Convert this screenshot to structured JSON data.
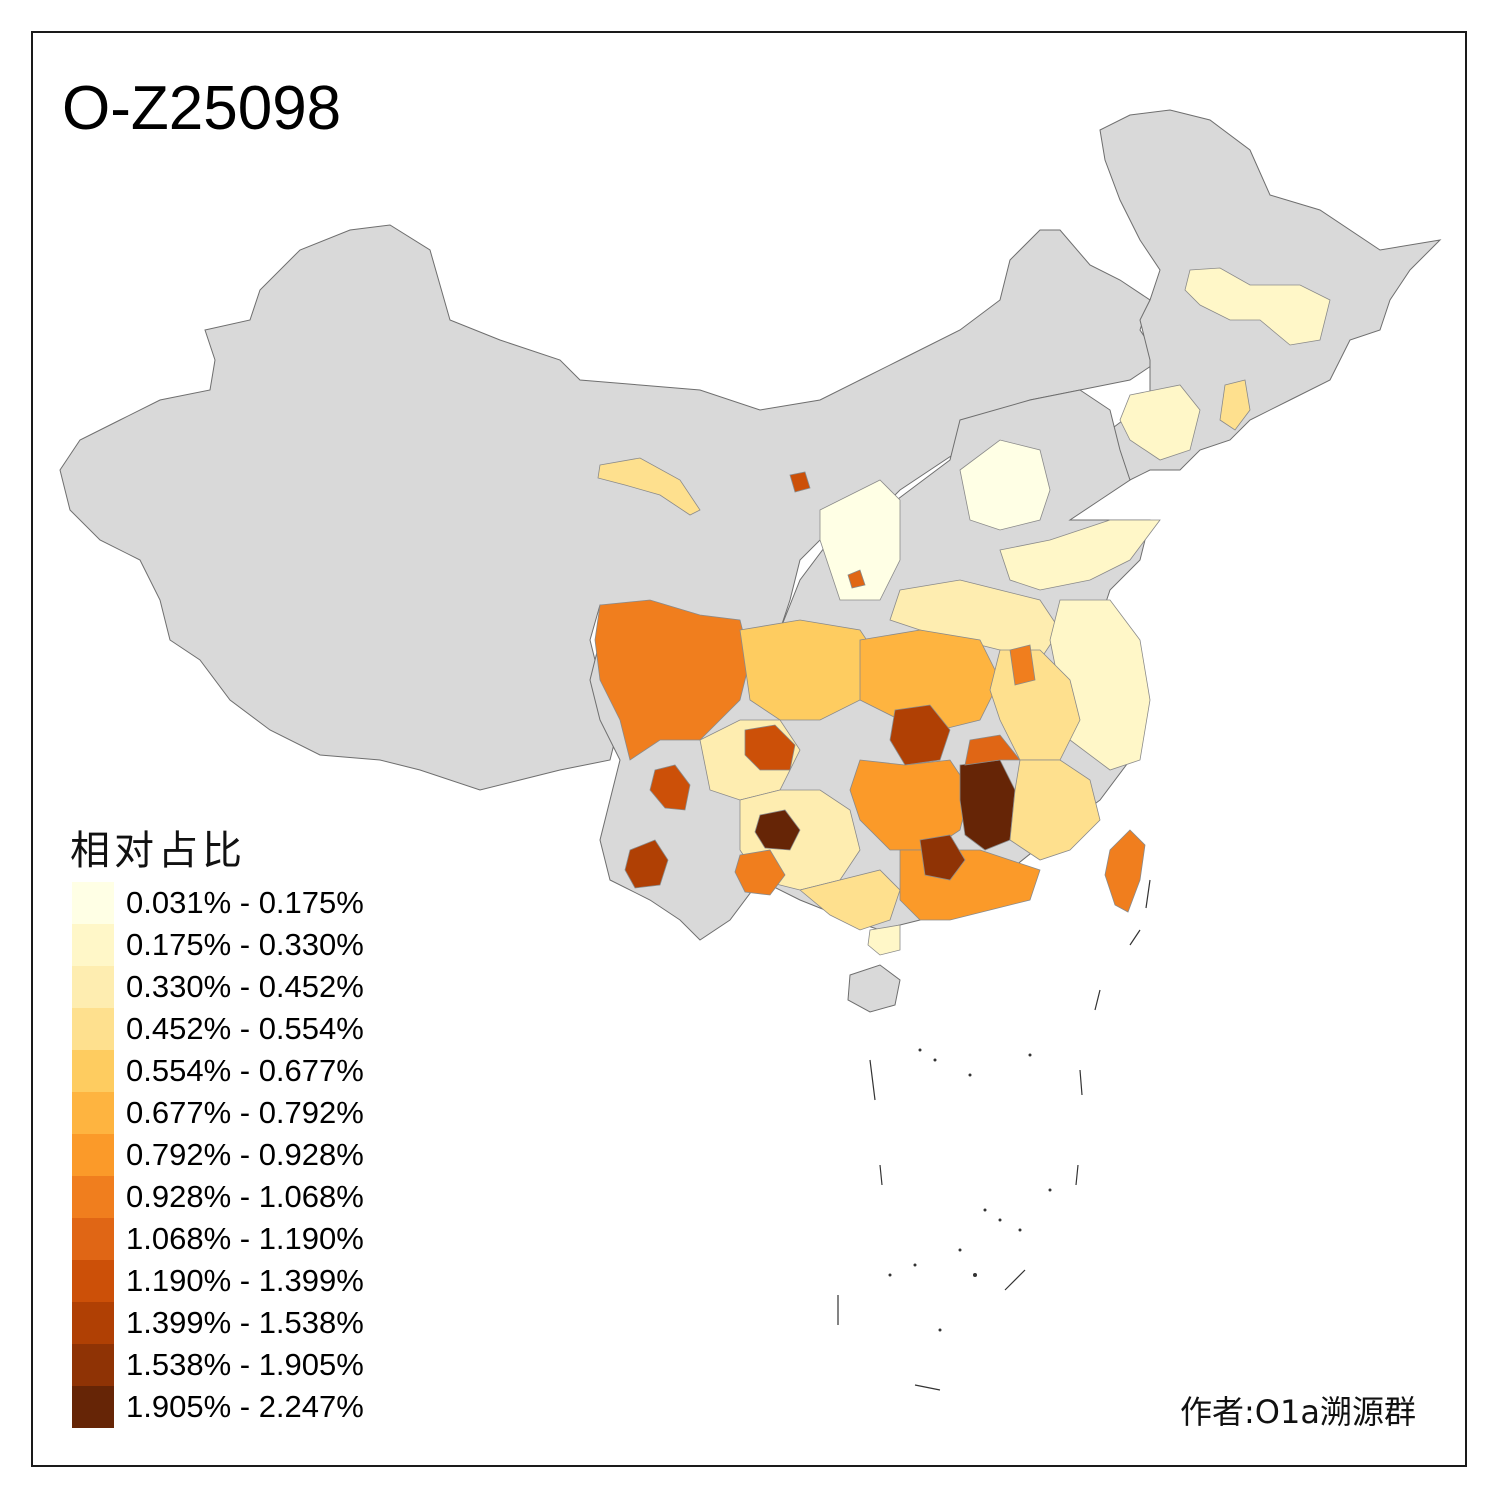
{
  "title": "O-Z25098",
  "legend": {
    "title": "相对占比",
    "classes": [
      {
        "label": "0.031% - 0.175%",
        "color": "#FFFFE5"
      },
      {
        "label": "0.175% - 0.330%",
        "color": "#FFF7C8"
      },
      {
        "label": "0.330% - 0.452%",
        "color": "#FEEDB0"
      },
      {
        "label": "0.452% - 0.554%",
        "color": "#FEE08E"
      },
      {
        "label": "0.554% - 0.677%",
        "color": "#FECC60"
      },
      {
        "label": "0.677% - 0.792%",
        "color": "#FEB440"
      },
      {
        "label": "0.792% - 0.928%",
        "color": "#FB9A29"
      },
      {
        "label": "0.928% - 1.068%",
        "color": "#F07E1E"
      },
      {
        "label": "1.068% - 1.190%",
        "color": "#E06615"
      },
      {
        "label": "1.190% - 1.399%",
        "color": "#CC5008"
      },
      {
        "label": "1.399% - 1.538%",
        "color": "#B04004"
      },
      {
        "label": "1.538% - 1.905%",
        "color": "#8F3305"
      },
      {
        "label": "1.905% - 2.247%",
        "color": "#662506"
      }
    ]
  },
  "no_data_color": "#D9D9D9",
  "author": "作者:O1a溯源群"
}
